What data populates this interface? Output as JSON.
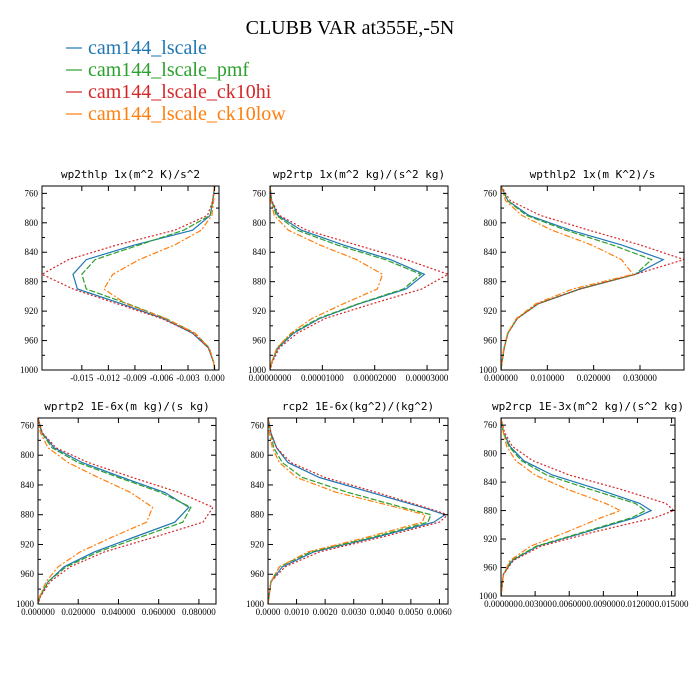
{
  "figure": {
    "title": "CLUBB VAR at355E,-5N",
    "legend": [
      {
        "name": "cam144_lscale",
        "color": "#1f77b4"
      },
      {
        "name": "cam144_lscale_pmf",
        "color": "#2ca02c"
      },
      {
        "name": "cam144_lscale_ck10hi",
        "color": "#d62728"
      },
      {
        "name": "cam144_lscale_ck10low",
        "color": "#ff7f0e"
      }
    ]
  },
  "chart_data": [
    {
      "type": "line",
      "title": "wp2thlp  1x(m^2 K)/s^2",
      "xlim": [
        -0.0195,
        0.0005
      ],
      "ylim": [
        1000,
        750
      ],
      "xticks": [
        "-0.015",
        "-0.012",
        "-0.009",
        "-0.006",
        "-0.003",
        "0.000"
      ],
      "xtick_values": [
        -0.015,
        -0.012,
        -0.009,
        -0.006,
        -0.003,
        0.0
      ],
      "yticks": [
        "760",
        "800",
        "840",
        "880",
        "920",
        "960",
        "1000"
      ],
      "ytick_values": [
        760,
        800,
        840,
        880,
        920,
        960,
        1000
      ],
      "y": [
        750,
        770,
        790,
        810,
        830,
        850,
        870,
        890,
        910,
        930,
        950,
        970,
        990,
        1000
      ],
      "series": [
        {
          "name": "cam144_lscale",
          "x": [
            0.0,
            -0.0002,
            -0.0005,
            -0.0025,
            -0.009,
            -0.0145,
            -0.016,
            -0.0155,
            -0.0105,
            -0.0058,
            -0.0025,
            -0.0007,
            -0.0001,
            0.0
          ]
        },
        {
          "name": "cam144_lscale_pmf",
          "x": [
            0.0,
            -0.0002,
            -0.0005,
            -0.0035,
            -0.0085,
            -0.0135,
            -0.015,
            -0.0145,
            -0.0098,
            -0.0055,
            -0.0022,
            -0.0006,
            -0.0001,
            0.0
          ]
        },
        {
          "name": "cam144_lscale_ck10hi",
          "x": [
            0.0,
            -0.0002,
            -0.0008,
            -0.0045,
            -0.011,
            -0.0165,
            -0.0195,
            -0.016,
            -0.011,
            -0.006,
            -0.0024,
            -0.0007,
            -0.0001,
            0.0
          ]
        },
        {
          "name": "cam144_lscale_ck10low",
          "x": [
            0.0,
            -0.0001,
            -0.0003,
            -0.0015,
            -0.0045,
            -0.0085,
            -0.0115,
            -0.0125,
            -0.01,
            -0.0055,
            -0.0022,
            -0.0006,
            -0.0001,
            0.0
          ]
        }
      ]
    },
    {
      "type": "line",
      "title": "wp2rtp  1x(m^2 kg)/(s^2 kg)",
      "xlim": [
        0.0,
        3.4e-05
      ],
      "ylim": [
        1000,
        750
      ],
      "xticks": [
        "0.00000000",
        "0.00001000",
        "0.00002000",
        "0.00003000"
      ],
      "xtick_values": [
        0.0,
        1e-05,
        2e-05,
        3e-05
      ],
      "yticks": [
        "760",
        "800",
        "840",
        "880",
        "920",
        "960",
        "1000"
      ],
      "ytick_values": [
        760,
        800,
        840,
        880,
        920,
        960,
        1000
      ],
      "y": [
        750,
        770,
        790,
        810,
        830,
        850,
        870,
        890,
        910,
        930,
        950,
        970,
        990,
        1000
      ],
      "series": [
        {
          "name": "cam144_lscale",
          "x": [
            0.0,
            3e-07,
            1.5e-06,
            6e-06,
            1.4e-05,
            2.3e-05,
            2.95e-05,
            2.6e-05,
            1.7e-05,
            9.5e-06,
            4.5e-06,
            1.5e-06,
            3e-07,
            0.0
          ]
        },
        {
          "name": "cam144_lscale_pmf",
          "x": [
            0.0,
            3e-07,
            1.2e-06,
            5.2e-06,
            1.28e-05,
            2.2e-05,
            2.88e-05,
            2.55e-05,
            1.68e-05,
            9.2e-06,
            4.2e-06,
            1.4e-06,
            3e-07,
            0.0
          ]
        },
        {
          "name": "cam144_lscale_ck10hi",
          "x": [
            0.0,
            3e-07,
            1.8e-06,
            7e-06,
            1.65e-05,
            2.6e-05,
            3.4e-05,
            2.9e-05,
            1.95e-05,
            1.05e-05,
            5.2e-06,
            1.8e-06,
            4e-07,
            0.0
          ]
        },
        {
          "name": "cam144_lscale_ck10low",
          "x": [
            0.0,
            2e-07,
            8e-07,
            3.5e-06,
            9.5e-06,
            1.65e-05,
            2.15e-05,
            2.05e-05,
            1.4e-05,
            8e-06,
            4e-06,
            1.3e-06,
            3e-07,
            0.0
          ]
        }
      ]
    },
    {
      "type": "line",
      "title": "wpthlp2  1x(m K^2)/s",
      "xlim": [
        0.0,
        0.0395
      ],
      "ylim": [
        1000,
        750
      ],
      "xticks": [
        "0.000000",
        "0.010000",
        "0.020000",
        "0.030000"
      ],
      "xtick_values": [
        0.0,
        0.01,
        0.02,
        0.03
      ],
      "yticks": [
        "760",
        "800",
        "840",
        "880",
        "920",
        "960",
        "1000"
      ],
      "ytick_values": [
        760,
        800,
        840,
        880,
        920,
        960,
        1000
      ],
      "y": [
        750,
        770,
        790,
        810,
        830,
        850,
        870,
        890,
        910,
        930,
        950,
        970,
        990,
        1000
      ],
      "series": [
        {
          "name": "cam144_lscale",
          "x": [
            0.0,
            0.0015,
            0.006,
            0.015,
            0.026,
            0.035,
            0.029,
            0.017,
            0.008,
            0.0035,
            0.0015,
            0.0007,
            0.0002,
            0.0
          ]
        },
        {
          "name": "cam144_lscale_pmf",
          "x": [
            0.0,
            0.0014,
            0.0055,
            0.014,
            0.024,
            0.0325,
            0.029,
            0.017,
            0.008,
            0.0035,
            0.0015,
            0.0007,
            0.0002,
            0.0
          ]
        },
        {
          "name": "cam144_lscale_ck10hi",
          "x": [
            0.0,
            0.002,
            0.0085,
            0.019,
            0.03,
            0.0395,
            0.029,
            0.017,
            0.008,
            0.0035,
            0.0015,
            0.0007,
            0.0002,
            0.0
          ]
        },
        {
          "name": "cam144_lscale_ck10low",
          "x": [
            0.0,
            0.001,
            0.0045,
            0.011,
            0.0195,
            0.026,
            0.0285,
            0.0155,
            0.0075,
            0.0033,
            0.0014,
            0.0006,
            0.0002,
            0.0
          ]
        }
      ]
    },
    {
      "type": "line",
      "title": "wprtp2  1E-6x(m kg)/(s kg)",
      "xlim": [
        0.0,
        0.0885
      ],
      "ylim": [
        1000,
        750
      ],
      "xticks": [
        "0.000000",
        "0.020000",
        "0.040000",
        "0.060000",
        "0.080000"
      ],
      "xtick_values": [
        0.0,
        0.02,
        0.04,
        0.06,
        0.08
      ],
      "yticks": [
        "760",
        "800",
        "840",
        "880",
        "920",
        "960",
        "1000"
      ],
      "ytick_values": [
        760,
        800,
        840,
        880,
        920,
        960,
        1000
      ],
      "y": [
        750,
        770,
        790,
        810,
        830,
        850,
        870,
        890,
        910,
        930,
        950,
        970,
        990,
        1000
      ],
      "series": [
        {
          "name": "cam144_lscale",
          "x": [
            0.0,
            0.002,
            0.008,
            0.022,
            0.042,
            0.063,
            0.075,
            0.068,
            0.048,
            0.028,
            0.013,
            0.005,
            0.001,
            0.0
          ]
        },
        {
          "name": "cam144_lscale_pmf",
          "x": [
            0.0,
            0.0018,
            0.007,
            0.02,
            0.04,
            0.061,
            0.076,
            0.072,
            0.051,
            0.03,
            0.014,
            0.005,
            0.001,
            0.0
          ]
        },
        {
          "name": "cam144_lscale_ck10hi",
          "x": [
            0.0,
            0.0022,
            0.009,
            0.025,
            0.047,
            0.07,
            0.087,
            0.082,
            0.058,
            0.033,
            0.016,
            0.006,
            0.0012,
            0.0
          ]
        },
        {
          "name": "cam144_lscale_ck10low",
          "x": [
            0.0,
            0.0012,
            0.005,
            0.015,
            0.03,
            0.046,
            0.057,
            0.054,
            0.037,
            0.021,
            0.01,
            0.004,
            0.0008,
            0.0
          ]
        }
      ]
    },
    {
      "type": "line",
      "title": "rcp2  1E-6x(kg^2)/(kg^2)",
      "xlim": [
        0.0,
        0.0063
      ],
      "ylim": [
        1000,
        750
      ],
      "xticks": [
        "0.0000",
        "0.0010",
        "0.0020",
        "0.0030",
        "0.0040",
        "0.0050",
        "0.0060"
      ],
      "xtick_values": [
        0.0,
        0.001,
        0.002,
        0.003,
        0.004,
        0.005,
        0.006
      ],
      "yticks": [
        "760",
        "800",
        "840",
        "880",
        "920",
        "960",
        "1000"
      ],
      "ytick_values": [
        760,
        800,
        840,
        880,
        920,
        960,
        1000
      ],
      "y": [
        750,
        770,
        790,
        810,
        830,
        850,
        870,
        880,
        890,
        910,
        930,
        950,
        970,
        1000
      ],
      "series": [
        {
          "name": "cam144_lscale",
          "x": [
            0.0,
            0.0001,
            0.0003,
            0.0007,
            0.0018,
            0.0036,
            0.0054,
            0.0062,
            0.0058,
            0.0038,
            0.0016,
            0.0005,
            0.0001,
            0.0
          ]
        },
        {
          "name": "cam144_lscale_pmf",
          "x": [
            0.0,
            0.0001,
            0.0002,
            0.0005,
            0.0012,
            0.0028,
            0.0047,
            0.0057,
            0.0056,
            0.0037,
            0.0015,
            0.0004,
            0.0001,
            0.0
          ]
        },
        {
          "name": "cam144_lscale_ck10hi",
          "x": [
            0.0,
            0.0001,
            0.0003,
            0.0008,
            0.002,
            0.0038,
            0.0055,
            0.0063,
            0.006,
            0.004,
            0.0018,
            0.0006,
            0.0001,
            0.0
          ]
        },
        {
          "name": "cam144_lscale_ck10low",
          "x": [
            0.0,
            5e-05,
            0.00015,
            0.0004,
            0.001,
            0.0024,
            0.0045,
            0.0055,
            0.0054,
            0.0035,
            0.0014,
            0.0004,
            0.0001,
            0.0
          ]
        }
      ]
    },
    {
      "type": "line",
      "title": "wp2rcp  1E-3x(m^2 kg)/(s^2 kg)",
      "xlim": [
        0.0,
        0.0153
      ],
      "ylim": [
        1000,
        750
      ],
      "xticks": [
        "0.000000",
        "0.003000",
        "0.006000",
        "0.009000",
        "0.012000",
        "0.015000"
      ],
      "xtick_values": [
        0.0,
        0.003,
        0.006,
        0.009,
        0.012,
        0.015
      ],
      "yticks": [
        "760",
        "800",
        "840",
        "880",
        "920",
        "960",
        "1000"
      ],
      "ytick_values": [
        760,
        800,
        840,
        880,
        920,
        960,
        1000
      ],
      "y": [
        750,
        770,
        790,
        810,
        830,
        850,
        870,
        880,
        890,
        910,
        930,
        950,
        970,
        1000
      ],
      "series": [
        {
          "name": "cam144_lscale",
          "x": [
            0.0,
            0.0002,
            0.0008,
            0.002,
            0.0045,
            0.0085,
            0.0122,
            0.0132,
            0.0118,
            0.0075,
            0.0032,
            0.001,
            0.0002,
            0.0
          ]
        },
        {
          "name": "cam144_lscale_pmf",
          "x": [
            0.0,
            0.0002,
            0.0007,
            0.0018,
            0.004,
            0.0078,
            0.0118,
            0.0127,
            0.0115,
            0.0073,
            0.0031,
            0.0009,
            0.0002,
            0.0
          ]
        },
        {
          "name": "cam144_lscale_ck10hi",
          "x": [
            0.0,
            0.0003,
            0.001,
            0.0028,
            0.006,
            0.0105,
            0.0145,
            0.0152,
            0.0135,
            0.0082,
            0.0035,
            0.0011,
            0.0002,
            0.0
          ]
        },
        {
          "name": "cam144_lscale_ck10low",
          "x": [
            0.0,
            0.0002,
            0.0005,
            0.0013,
            0.003,
            0.0058,
            0.0092,
            0.0105,
            0.0088,
            0.0058,
            0.0026,
            0.0008,
            0.0002,
            0.0
          ]
        }
      ]
    }
  ]
}
